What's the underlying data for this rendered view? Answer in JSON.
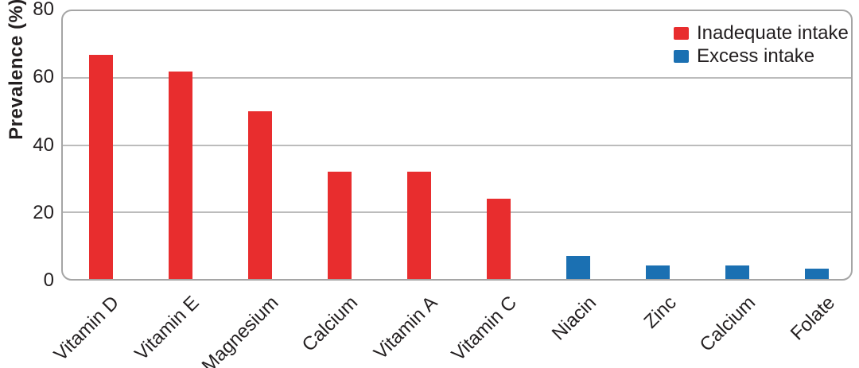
{
  "figure": {
    "background": "#ffffff",
    "plot_border_color": "#a5a5a5",
    "gridline_color": "#bcbcbc",
    "text_color": "#231f20"
  },
  "legend": {
    "position": "top-right",
    "items": [
      {
        "label": "Inadequate intake",
        "color": "#e82d2e"
      },
      {
        "label": "Excess intake",
        "color": "#1b70b2"
      }
    ]
  },
  "chart_data": {
    "type": "bar",
    "title": "",
    "xlabel": "",
    "ylabel": "Prevalence (%)",
    "ylim": [
      0,
      80
    ],
    "yticks": [
      0,
      20,
      40,
      60,
      80
    ],
    "gridlines": [
      20,
      40,
      60
    ],
    "grid": true,
    "legend_position": "top-right",
    "x_label_rotation_deg": 45,
    "categories": [
      "Vitamin D",
      "Vitamin E",
      "Magnesium",
      "Calcium",
      "Vitamin A",
      "Vitamin C",
      "Niacin",
      "Zinc",
      "Calcium",
      "Folate"
    ],
    "series": [
      {
        "name": "Inadequate intake",
        "color": "#e82d2e",
        "values": [
          67,
          62,
          50,
          32,
          32,
          24,
          null,
          null,
          null,
          null
        ]
      },
      {
        "name": "Excess intake",
        "color": "#1b70b2",
        "values": [
          null,
          null,
          null,
          null,
          null,
          null,
          7,
          4,
          4,
          3
        ]
      }
    ]
  }
}
